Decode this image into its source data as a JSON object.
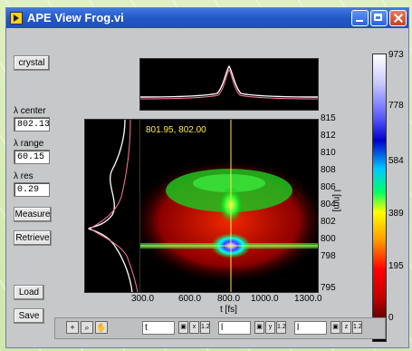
{
  "window": {
    "title": "APE View Frog.vi"
  },
  "left_panel": {
    "crystal_button": "crystal",
    "lambda_center_label": "λ center",
    "lambda_center_value": "802.13",
    "lambda_range_label": "λ range",
    "lambda_range_value": "60.15",
    "lambda_res_label": "λ res",
    "lambda_res_value": "0.29",
    "measure_button": "Measure",
    "retrieve_button": "Retrieve",
    "load_button": "Load",
    "save_button": "Save"
  },
  "main_plot": {
    "cursor_readout": "801.95, 802.00",
    "x_axis_label": "t [fs]",
    "y_axis_label": "l [nm]",
    "x_ticks": [
      "300.0",
      "600.0",
      "800.0",
      "1000.0",
      "1300.0"
    ],
    "y_ticks": [
      "815",
      "812",
      "810",
      "808",
      "806",
      "804",
      "802",
      "800",
      "798",
      "795"
    ]
  },
  "colorbar": {
    "ticks": [
      "973",
      "778",
      "584",
      "389",
      "195",
      "0"
    ]
  },
  "bottom_toolbar": {
    "graph_tools": [
      "cursor-tool-icon",
      "zoom-tool-icon",
      "pan-tool-icon"
    ],
    "axis1_name": "t",
    "axis2_name": "l",
    "axis3_name": "l",
    "format_label": "1.2"
  }
}
